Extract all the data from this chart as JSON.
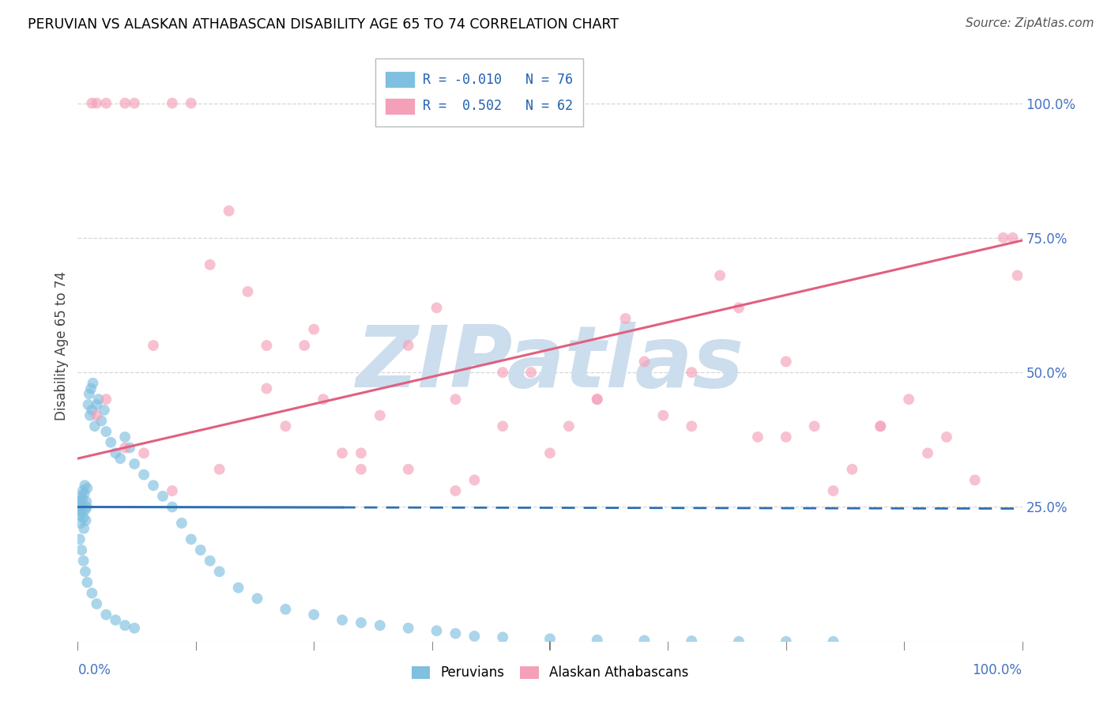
{
  "title": "PERUVIAN VS ALASKAN ATHABASCAN DISABILITY AGE 65 TO 74 CORRELATION CHART",
  "source": "Source: ZipAtlas.com",
  "ylabel": "Disability Age 65 to 74",
  "watermark": "ZIPatlas",
  "legend_labels": [
    "Peruvians",
    "Alaskan Athabascans"
  ],
  "r_peruvian": -0.01,
  "n_peruvian": 76,
  "r_athabascan": 0.502,
  "n_athabascan": 62,
  "peruvian_color": "#7fbfdf",
  "athabascan_color": "#f4a0b8",
  "peruvian_line_color": "#3070b0",
  "athabascan_line_color": "#e06080",
  "xlim": [
    0.0,
    100.0
  ],
  "ylim": [
    0.0,
    110.0
  ],
  "yticks_right": [
    25.0,
    50.0,
    75.0,
    100.0
  ],
  "xtick_left_label": "0.0%",
  "xtick_right_label": "100.0%",
  "peruvian_reg_intercept": 25.0,
  "peruvian_reg_slope": -0.003,
  "peruvian_solid_end": 28.0,
  "athabascan_reg_intercept": 34.0,
  "athabascan_reg_slope": 0.405,
  "background_color": "#ffffff",
  "grid_color": "#cccccc",
  "title_color": "#000000",
  "title_fontsize": 12.5,
  "tick_color": "#4472c4",
  "watermark_color": "#ccdded",
  "source_fontsize": 11,
  "peruvian_x": [
    0.1,
    0.15,
    0.2,
    0.25,
    0.3,
    0.35,
    0.4,
    0.45,
    0.5,
    0.55,
    0.6,
    0.65,
    0.7,
    0.75,
    0.8,
    0.85,
    0.9,
    0.95,
    1.0,
    1.1,
    1.2,
    1.3,
    1.4,
    1.5,
    1.6,
    1.8,
    2.0,
    2.2,
    2.5,
    2.8,
    3.0,
    3.5,
    4.0,
    4.5,
    5.0,
    5.5,
    6.0,
    7.0,
    8.0,
    9.0,
    10.0,
    11.0,
    12.0,
    13.0,
    14.0,
    15.0,
    17.0,
    19.0,
    22.0,
    25.0,
    28.0,
    30.0,
    32.0,
    35.0,
    38.0,
    40.0,
    42.0,
    45.0,
    50.0,
    55.0,
    60.0,
    65.0,
    70.0,
    75.0,
    80.0,
    0.2,
    0.4,
    0.6,
    0.8,
    1.0,
    1.5,
    2.0,
    3.0,
    4.0,
    5.0,
    6.0
  ],
  "peruvian_y": [
    24.5,
    25.0,
    23.5,
    26.0,
    22.0,
    27.0,
    25.5,
    24.0,
    26.5,
    28.0,
    23.0,
    21.0,
    27.5,
    29.0,
    24.5,
    22.5,
    26.0,
    25.0,
    28.5,
    44.0,
    46.0,
    42.0,
    47.0,
    43.0,
    48.0,
    40.0,
    44.0,
    45.0,
    41.0,
    43.0,
    39.0,
    37.0,
    35.0,
    34.0,
    38.0,
    36.0,
    33.0,
    31.0,
    29.0,
    27.0,
    25.0,
    22.0,
    19.0,
    17.0,
    15.0,
    13.0,
    10.0,
    8.0,
    6.0,
    5.0,
    4.0,
    3.5,
    3.0,
    2.5,
    2.0,
    1.5,
    1.0,
    0.8,
    0.5,
    0.3,
    0.2,
    0.1,
    0.0,
    0.0,
    0.0,
    19.0,
    17.0,
    15.0,
    13.0,
    11.0,
    9.0,
    7.0,
    5.0,
    4.0,
    3.0,
    2.5
  ],
  "athabascan_x": [
    1.5,
    2.0,
    3.0,
    5.0,
    6.0,
    8.0,
    10.0,
    12.0,
    14.0,
    16.0,
    18.0,
    20.0,
    22.0,
    24.0,
    26.0,
    28.0,
    30.0,
    32.0,
    35.0,
    38.0,
    40.0,
    42.0,
    45.0,
    48.0,
    50.0,
    52.0,
    55.0,
    58.0,
    60.0,
    62.0,
    65.0,
    68.0,
    70.0,
    72.0,
    75.0,
    78.0,
    80.0,
    82.0,
    85.0,
    88.0,
    90.0,
    92.0,
    95.0,
    98.0,
    99.0,
    99.5,
    3.0,
    7.0,
    15.0,
    25.0,
    35.0,
    45.0,
    55.0,
    65.0,
    75.0,
    85.0,
    2.0,
    5.0,
    10.0,
    20.0,
    30.0,
    40.0
  ],
  "athabascan_y": [
    100.0,
    100.0,
    100.0,
    100.0,
    100.0,
    55.0,
    100.0,
    100.0,
    70.0,
    80.0,
    65.0,
    47.0,
    40.0,
    55.0,
    45.0,
    35.0,
    35.0,
    42.0,
    55.0,
    62.0,
    28.0,
    30.0,
    40.0,
    50.0,
    35.0,
    40.0,
    45.0,
    60.0,
    52.0,
    42.0,
    40.0,
    68.0,
    62.0,
    38.0,
    52.0,
    40.0,
    28.0,
    32.0,
    40.0,
    45.0,
    35.0,
    38.0,
    30.0,
    75.0,
    75.0,
    68.0,
    45.0,
    35.0,
    32.0,
    58.0,
    32.0,
    50.0,
    45.0,
    50.0,
    38.0,
    40.0,
    42.0,
    36.0,
    28.0,
    55.0,
    32.0,
    45.0
  ]
}
